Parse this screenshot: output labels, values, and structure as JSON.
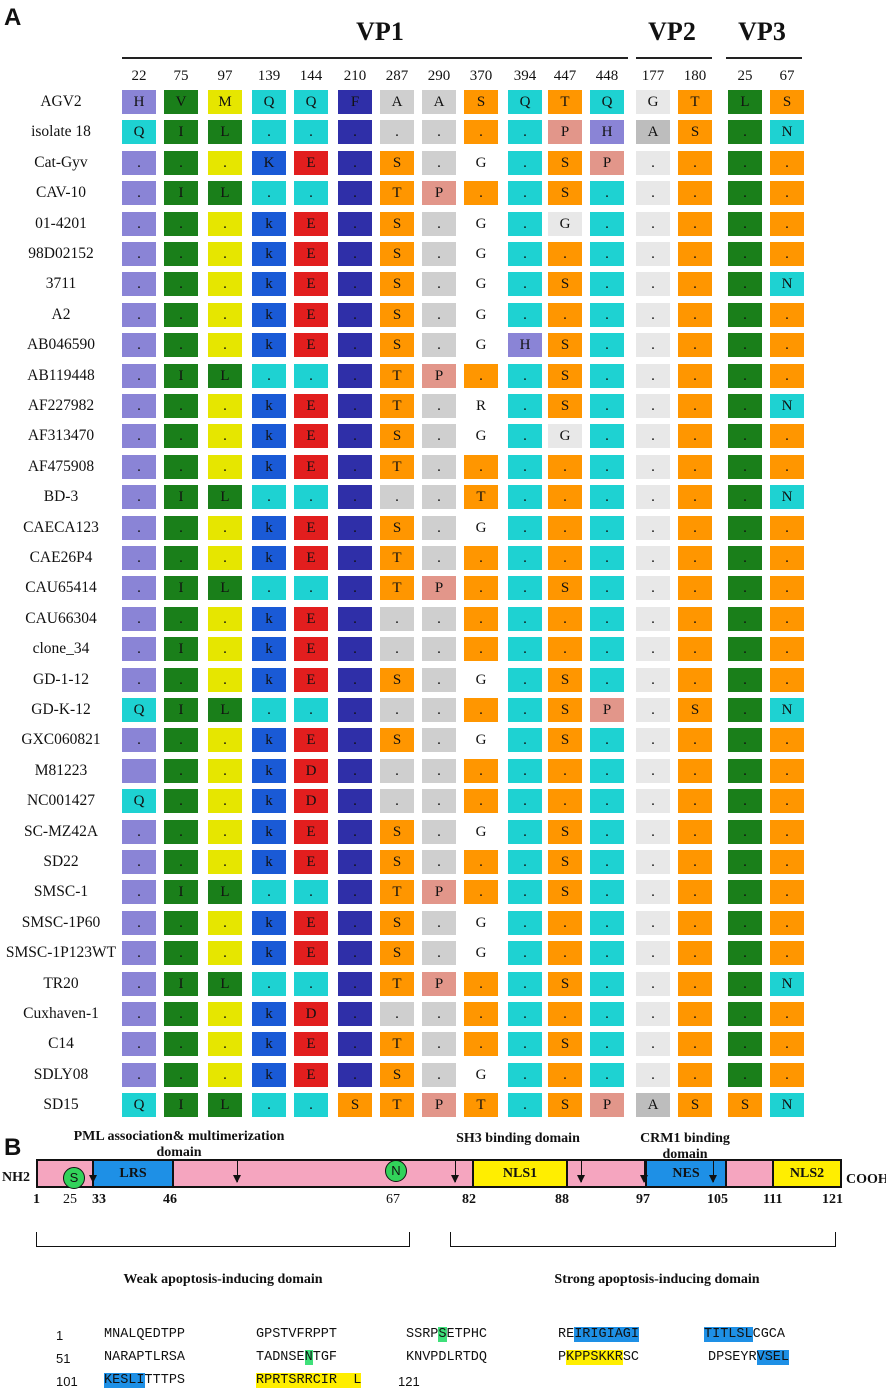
{
  "panelA": {
    "label": "A"
  },
  "panelB": {
    "label": "B"
  },
  "groups": [
    {
      "name": "VP1"
    },
    {
      "name": "VP2"
    },
    {
      "name": "VP3"
    }
  ],
  "positions": [
    "22",
    "75",
    "97",
    "139",
    "144",
    "210",
    "287",
    "290",
    "370",
    "394",
    "447",
    "448",
    "177",
    "180",
    "25",
    "67"
  ],
  "colors": {
    "c0": "#8a84d6",
    "c1": "#1a7f1a",
    "c2": "#e6e600",
    "c3": "#1aa0e0",
    "c4": "#e21e1e",
    "c5": "#2f2fa8",
    "c6": "#cfcfcf",
    "c7": "#cfcfcf",
    "c8": "#ff9600",
    "c9": "#1ed2d2",
    "c10": "#ff9600",
    "c11": "#1ed2d2",
    "c12": "#e8e8e8",
    "c13": "#ff9600",
    "c14": "#1a7f1a",
    "c15": "#ff9600"
  },
  "rows": [
    {
      "name": "AGV2",
      "cells": [
        "H",
        "V",
        "M",
        "Q",
        "Q",
        "F",
        "A",
        "A",
        "S",
        "Q",
        "T",
        "Q",
        "G",
        "T",
        "L",
        "S"
      ]
    },
    {
      "name": "isolate 18",
      "cells": [
        "Q",
        "I",
        "L",
        ".",
        ".",
        ".",
        ".",
        ".",
        ".",
        ".",
        "P",
        "H",
        "A",
        "S",
        ".",
        "N"
      ]
    },
    {
      "name": "Cat-Gyv",
      "cells": [
        ".",
        ".",
        ".",
        "K",
        "E",
        ".",
        "S",
        ".",
        "G",
        ".",
        "S",
        "P",
        ".",
        ".",
        ".",
        "."
      ]
    },
    {
      "name": "CAV-10",
      "cells": [
        ".",
        "I",
        "L",
        ".",
        ".",
        ".",
        "T",
        "P",
        ".",
        ".",
        "S",
        ".",
        ".",
        ".",
        ".",
        "."
      ]
    },
    {
      "name": "01-4201",
      "cells": [
        ".",
        ".",
        ".",
        "k",
        "E",
        ".",
        "S",
        ".",
        "G",
        ".",
        "G",
        ".",
        ".",
        ".",
        ".",
        "."
      ]
    },
    {
      "name": "98D02152",
      "cells": [
        ".",
        ".",
        ".",
        "k",
        "E",
        ".",
        "S",
        ".",
        "G",
        ".",
        ".",
        ".",
        ".",
        ".",
        ".",
        "."
      ]
    },
    {
      "name": "3711",
      "cells": [
        ".",
        ".",
        ".",
        "k",
        "E",
        ".",
        "S",
        ".",
        "G",
        ".",
        "S",
        ".",
        ".",
        ".",
        ".",
        "N"
      ]
    },
    {
      "name": "A2",
      "cells": [
        ".",
        ".",
        ".",
        "k",
        "E",
        ".",
        "S",
        ".",
        "G",
        ".",
        ".",
        ".",
        ".",
        ".",
        ".",
        "."
      ]
    },
    {
      "name": "AB046590",
      "cells": [
        ".",
        ".",
        ".",
        "k",
        "E",
        ".",
        "S",
        ".",
        "G",
        "H",
        "S",
        ".",
        ".",
        ".",
        ".",
        "."
      ]
    },
    {
      "name": "AB119448",
      "cells": [
        ".",
        "I",
        "L",
        ".",
        ".",
        ".",
        "T",
        "P",
        ".",
        ".",
        "S",
        ".",
        ".",
        ".",
        ".",
        "."
      ]
    },
    {
      "name": "AF227982",
      "cells": [
        ".",
        ".",
        ".",
        "k",
        "E",
        ".",
        "T",
        ".",
        "R",
        ".",
        "S",
        ".",
        ".",
        ".",
        ".",
        "N"
      ]
    },
    {
      "name": "AF313470",
      "cells": [
        ".",
        ".",
        ".",
        "k",
        "E",
        ".",
        "S",
        ".",
        "G",
        ".",
        "G",
        ".",
        ".",
        ".",
        ".",
        "."
      ]
    },
    {
      "name": "AF475908",
      "cells": [
        ".",
        ".",
        ".",
        "k",
        "E",
        ".",
        "T",
        ".",
        ".",
        ".",
        ".",
        ".",
        ".",
        ".",
        ".",
        "."
      ]
    },
    {
      "name": "BD-3",
      "cells": [
        ".",
        "I",
        "L",
        ".",
        ".",
        ".",
        ".",
        ".",
        "T",
        ".",
        ".",
        ".",
        ".",
        ".",
        ".",
        "N"
      ]
    },
    {
      "name": "CAECA123",
      "cells": [
        ".",
        ".",
        ".",
        "k",
        "E",
        ".",
        "S",
        ".",
        "G",
        ".",
        ".",
        ".",
        ".",
        ".",
        ".",
        "."
      ]
    },
    {
      "name": "CAE26P4",
      "cells": [
        ".",
        ".",
        ".",
        "k",
        "E",
        ".",
        "T",
        ".",
        ".",
        ".",
        ".",
        ".",
        ".",
        ".",
        ".",
        "."
      ]
    },
    {
      "name": "CAU65414",
      "cells": [
        ".",
        "I",
        "L",
        ".",
        ".",
        ".",
        "T",
        "P",
        ".",
        ".",
        "S",
        ".",
        ".",
        ".",
        ".",
        "."
      ]
    },
    {
      "name": "CAU66304",
      "cells": [
        ".",
        ".",
        ".",
        "k",
        "E",
        ".",
        ".",
        ".",
        ".",
        ".",
        ".",
        ".",
        ".",
        ".",
        ".",
        "."
      ]
    },
    {
      "name": "clone_34",
      "cells": [
        ".",
        "I",
        ".",
        "k",
        "E",
        ".",
        ".",
        ".",
        ".",
        ".",
        ".",
        ".",
        ".",
        ".",
        ".",
        "."
      ]
    },
    {
      "name": "GD-1-12",
      "cells": [
        ".",
        ".",
        ".",
        "k",
        "E",
        ".",
        "S",
        ".",
        "G",
        ".",
        "S",
        ".",
        ".",
        ".",
        ".",
        "."
      ]
    },
    {
      "name": "GD-K-12",
      "cells": [
        "Q",
        "I",
        "L",
        ".",
        ".",
        ".",
        ".",
        ".",
        ".",
        ".",
        "S",
        "P",
        ".",
        "S",
        ".",
        "N"
      ]
    },
    {
      "name": "GXC060821",
      "cells": [
        ".",
        ".",
        ".",
        "k",
        "E",
        ".",
        "S",
        ".",
        "G",
        ".",
        "S",
        ".",
        ".",
        ".",
        ".",
        "."
      ]
    },
    {
      "name": "M81223",
      "cells": [
        "",
        ".",
        ".",
        "k",
        "D",
        ".",
        ".",
        ".",
        ".",
        ".",
        ".",
        ".",
        ".",
        ".",
        ".",
        "."
      ]
    },
    {
      "name": "NC001427",
      "cells": [
        "Q",
        ".",
        ".",
        "k",
        "D",
        ".",
        ".",
        ".",
        ".",
        ".",
        ".",
        ".",
        ".",
        ".",
        ".",
        "."
      ]
    },
    {
      "name": "SC-MZ42A",
      "cells": [
        ".",
        ".",
        ".",
        "k",
        "E",
        ".",
        "S",
        ".",
        "G",
        ".",
        "S",
        ".",
        ".",
        ".",
        ".",
        "."
      ]
    },
    {
      "name": "SD22",
      "cells": [
        ".",
        ".",
        ".",
        "k",
        "E",
        ".",
        "S",
        ".",
        ".",
        ".",
        "S",
        ".",
        ".",
        ".",
        ".",
        "."
      ]
    },
    {
      "name": "SMSC-1",
      "cells": [
        ".",
        "I",
        "L",
        ".",
        ".",
        ".",
        "T",
        "P",
        ".",
        ".",
        "S",
        ".",
        ".",
        ".",
        ".",
        "."
      ]
    },
    {
      "name": "SMSC-1P60",
      "cells": [
        ".",
        ".",
        ".",
        "k",
        "E",
        ".",
        "S",
        ".",
        "G",
        ".",
        ".",
        ".",
        ".",
        ".",
        ".",
        "."
      ]
    },
    {
      "name": "SMSC-1P123WT",
      "cells": [
        ".",
        ".",
        ".",
        "k",
        "E",
        ".",
        "S",
        ".",
        "G",
        ".",
        ".",
        ".",
        ".",
        ".",
        ".",
        "."
      ]
    },
    {
      "name": "TR20",
      "cells": [
        ".",
        "I",
        "L",
        ".",
        ".",
        ".",
        "T",
        "P",
        ".",
        ".",
        "S",
        ".",
        ".",
        ".",
        ".",
        "N"
      ]
    },
    {
      "name": "Cuxhaven-1",
      "cells": [
        ".",
        ".",
        ".",
        "k",
        "D",
        ".",
        ".",
        ".",
        ".",
        ".",
        ".",
        ".",
        ".",
        ".",
        ".",
        "."
      ]
    },
    {
      "name": "C14",
      "cells": [
        ".",
        ".",
        ".",
        "k",
        "E",
        ".",
        "T",
        ".",
        ".",
        ".",
        "S",
        ".",
        ".",
        ".",
        ".",
        "."
      ]
    },
    {
      "name": "SDLY08",
      "cells": [
        ".",
        ".",
        ".",
        "k",
        "E",
        ".",
        "S",
        ".",
        "G",
        ".",
        ".",
        ".",
        ".",
        ".",
        ".",
        "."
      ]
    },
    {
      "name": "SD15",
      "cells": [
        "Q",
        "I",
        "L",
        ".",
        ".",
        "S",
        "T",
        "P",
        "T",
        ".",
        "S",
        "P",
        "A",
        "S",
        "S",
        "N"
      ]
    }
  ],
  "domains": {
    "pml": "PML association& multimerization domain",
    "sh3": "SH3 binding domain",
    "crm1": "CRM1 binding domain",
    "nh2": "NH2",
    "cooh": "COOH",
    "lrs": "LRS",
    "nls1": "NLS1",
    "nes": "NES",
    "nls2": "NLS2",
    "site_s": "S",
    "site_n": "N",
    "n1": "1",
    "n25": "25",
    "n33": "33",
    "n46": "46",
    "n67": "67",
    "n82": "82",
    "n88": "88",
    "n97": "97",
    "n105": "105",
    "n111": "111",
    "n121": "121",
    "weak": "Weak apoptosis-inducing domain",
    "strong": "Strong apoptosis-inducing domain"
  },
  "sequence": {
    "r1num": "1",
    "r1b1": "MNALQEDTPP",
    "r1b2": "GPSTVFRPPT",
    "r1b3a": "SSRP",
    "r1b3b": "S",
    "r1b3c": "ETPHC",
    "r1b4a": "RE",
    "r1b4b": "IRIGIAGI",
    "r1b5a": "TITLSL",
    "r1b5b": "CGCA",
    "r2num": "51",
    "r2b1": "NARAPTLRSA",
    "r2b2a": "TADNSE",
    "r2b2b": "N",
    "r2b2c": "TGF",
    "r2b3": "KNVPDLRTDQ",
    "r2b4a": "P",
    "r2b4b": "KPPSKKR",
    "r2b4c": "SC",
    "r2b5a": "DPSEYR",
    "r2b5b": "VSEL",
    "r3num": "101",
    "r3b1a": "KESLI",
    "r3b1b": "TTTPS",
    "r3b2": "RPRTSRRCIR  L",
    "r3end": "121"
  }
}
